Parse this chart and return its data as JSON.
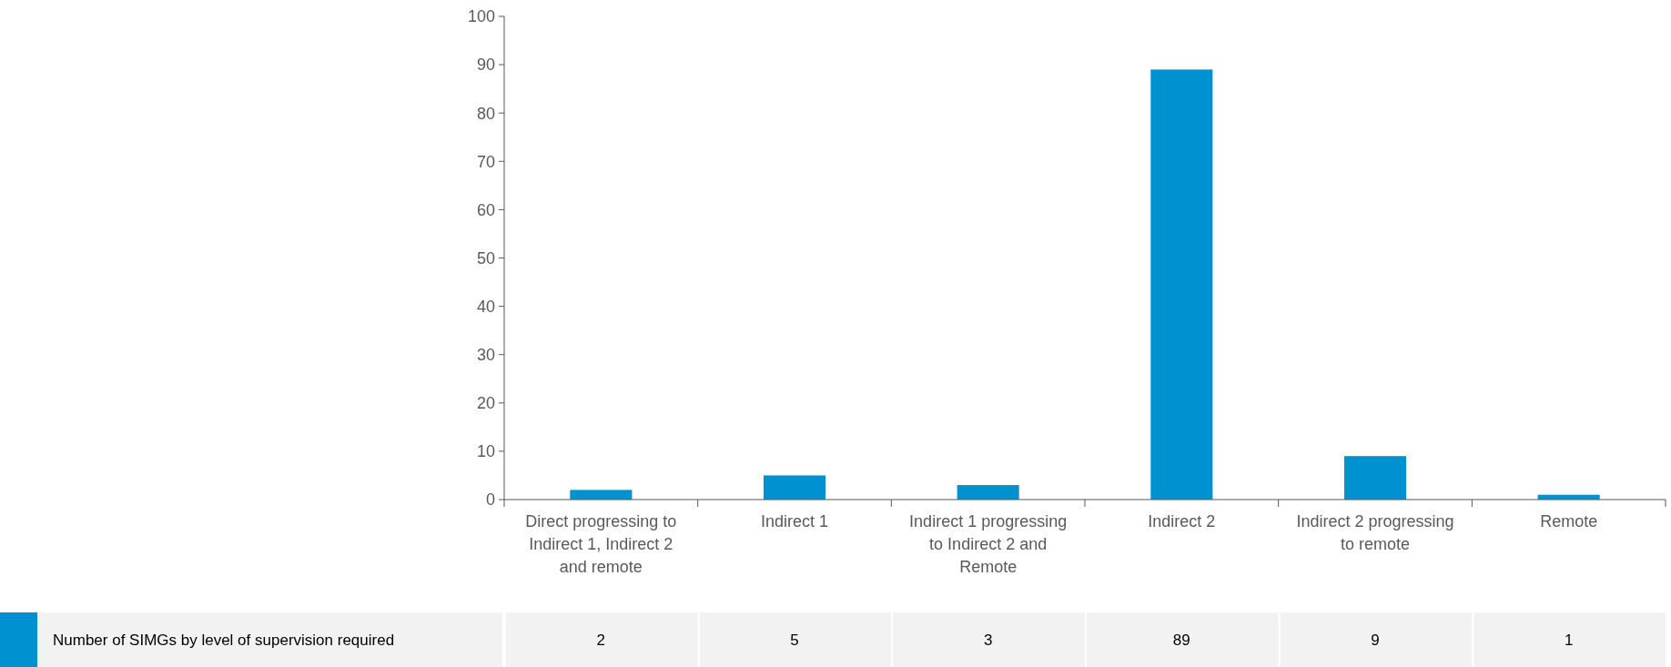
{
  "chart_data": {
    "type": "bar",
    "categories": [
      "Direct progressing to Indirect 1, Indirect 2 and remote",
      "Indirect 1",
      "Indirect 1 progressing to Indirect 2 and Remote",
      "Indirect 2",
      "Indirect 2 progressing to remote",
      "Remote"
    ],
    "series": [
      {
        "name": "Number of SIMGs by level of supervision required",
        "color": "#0091d0",
        "values": [
          2,
          5,
          3,
          89,
          9,
          1
        ]
      }
    ],
    "ylim": [
      0,
      100
    ],
    "yticks": [
      0,
      10,
      20,
      30,
      40,
      50,
      60,
      70,
      80,
      90,
      100
    ],
    "grid": false,
    "legend": "bottom",
    "data_labels": true
  }
}
